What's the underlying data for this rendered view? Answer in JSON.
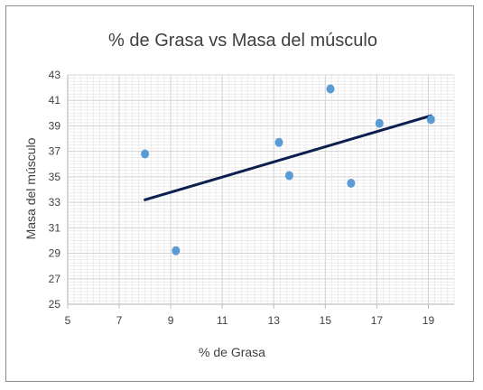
{
  "chart_data": {
    "type": "scatter",
    "title": "% de Grasa vs Masa del músculo",
    "xlabel": "% de Grasa",
    "ylabel": "Masa del músculo",
    "xlim": [
      5,
      20
    ],
    "ylim": [
      25,
      43
    ],
    "x_ticks": [
      5,
      7,
      9,
      11,
      13,
      15,
      17,
      19
    ],
    "y_ticks": [
      25,
      27,
      29,
      31,
      33,
      35,
      37,
      39,
      41,
      43
    ],
    "minor_grid": true,
    "legend": "none",
    "points": [
      {
        "x": 8.0,
        "y": 36.8
      },
      {
        "x": 9.2,
        "y": 29.2
      },
      {
        "x": 13.2,
        "y": 37.7
      },
      {
        "x": 13.6,
        "y": 35.1
      },
      {
        "x": 15.2,
        "y": 41.9
      },
      {
        "x": 16.0,
        "y": 34.5
      },
      {
        "x": 17.1,
        "y": 39.2
      },
      {
        "x": 19.1,
        "y": 39.5
      }
    ],
    "trendline": {
      "x": [
        8.0,
        19.1
      ],
      "y": [
        33.2,
        39.8
      ]
    },
    "colors": {
      "points": "#5b9bd5",
      "trendline": "#0d1f4f",
      "grid": "#e3e3e3",
      "axis": "#bfbfbf"
    }
  }
}
